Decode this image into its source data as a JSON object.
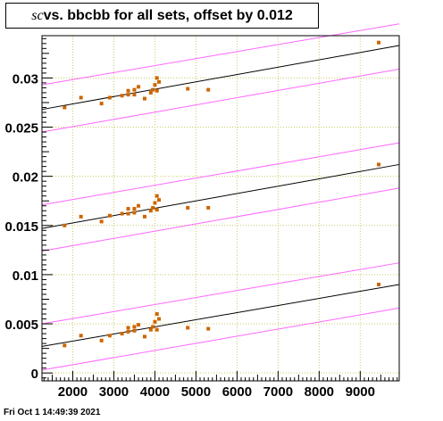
{
  "title": {
    "italic_var": "sc",
    "rest": " vs. bbcbb for all sets, offset by 0.012"
  },
  "footer": {
    "timestamp": "Fri Oct  1 14:49:39 2021"
  },
  "colors": {
    "points": "#cc6600",
    "fit": "#000000",
    "band": "#ff66ff",
    "grid": "#cccc66",
    "axis": "#000000"
  },
  "chart_data": {
    "type": "scatter",
    "title": "sc vs. bbcbb for all sets, offset by 0.012",
    "xlabel": "",
    "ylabel": "",
    "xlim": [
      1250,
      9950
    ],
    "ylim": [
      -0.0008,
      0.0343
    ],
    "x_ticks": [
      2000,
      3000,
      4000,
      5000,
      6000,
      7000,
      8000,
      9000
    ],
    "x_tick_labels": [
      "2000",
      "3000",
      "4000",
      "5000",
      "6000",
      "7000",
      "8000",
      "9000"
    ],
    "y_ticks": [
      0,
      0.005,
      0.01,
      0.015,
      0.02,
      0.025,
      0.03
    ],
    "y_tick_labels": [
      "0",
      "0.005",
      "0.01",
      "0.015",
      "0.02",
      "0.025",
      "0.03"
    ],
    "grid": true,
    "series": [
      {
        "points": [
          [
            1800,
            0.0028
          ],
          [
            2200,
            0.0038
          ],
          [
            2700,
            0.0033
          ],
          [
            2900,
            0.0038
          ],
          [
            3200,
            0.004
          ],
          [
            3350,
            0.0042
          ],
          [
            3350,
            0.0046
          ],
          [
            3500,
            0.0043
          ],
          [
            3500,
            0.0047
          ],
          [
            3600,
            0.0049
          ],
          [
            3750,
            0.0037
          ],
          [
            3900,
            0.0044
          ],
          [
            3950,
            0.0047
          ],
          [
            4000,
            0.0052
          ],
          [
            4050,
            0.006
          ],
          [
            4050,
            0.0044
          ],
          [
            4100,
            0.0055
          ],
          [
            4800,
            0.0046
          ],
          [
            5300,
            0.0045
          ],
          [
            9450,
            0.009
          ]
        ],
        "fit": [
          [
            1250,
            0.0027
          ],
          [
            9950,
            0.009
          ]
        ],
        "band_upper": [
          [
            1250,
            0.005
          ],
          [
            9950,
            0.0112
          ]
        ],
        "band_lower": [
          [
            1250,
            0.0003
          ],
          [
            9950,
            0.0066
          ]
        ]
      },
      {
        "points": [
          [
            1800,
            0.015
          ],
          [
            2200,
            0.0159
          ],
          [
            2700,
            0.0154
          ],
          [
            2900,
            0.016
          ],
          [
            3200,
            0.0162
          ],
          [
            3350,
            0.0162
          ],
          [
            3350,
            0.0167
          ],
          [
            3500,
            0.0163
          ],
          [
            3500,
            0.0167
          ],
          [
            3600,
            0.017
          ],
          [
            3750,
            0.0159
          ],
          [
            3900,
            0.0165
          ],
          [
            3950,
            0.0168
          ],
          [
            4000,
            0.0173
          ],
          [
            4050,
            0.018
          ],
          [
            4050,
            0.0166
          ],
          [
            4100,
            0.0176
          ],
          [
            4800,
            0.0168
          ],
          [
            5300,
            0.0168
          ],
          [
            9450,
            0.0212
          ]
        ],
        "fit": [
          [
            1250,
            0.0147
          ],
          [
            9950,
            0.0212
          ]
        ],
        "band_upper": [
          [
            1250,
            0.0171
          ],
          [
            9950,
            0.0234
          ]
        ],
        "band_lower": [
          [
            1250,
            0.0124
          ],
          [
            9950,
            0.0188
          ]
        ]
      },
      {
        "points": [
          [
            1800,
            0.027
          ],
          [
            2200,
            0.028
          ],
          [
            2700,
            0.0274
          ],
          [
            2900,
            0.028
          ],
          [
            3200,
            0.0282
          ],
          [
            3350,
            0.0283
          ],
          [
            3350,
            0.0287
          ],
          [
            3500,
            0.0283
          ],
          [
            3500,
            0.0288
          ],
          [
            3600,
            0.0291
          ],
          [
            3750,
            0.0279
          ],
          [
            3900,
            0.0285
          ],
          [
            3950,
            0.0288
          ],
          [
            4000,
            0.0293
          ],
          [
            4050,
            0.03
          ],
          [
            4050,
            0.0287
          ],
          [
            4100,
            0.0296
          ],
          [
            4800,
            0.0289
          ],
          [
            5300,
            0.0288
          ],
          [
            9450,
            0.0336
          ]
        ],
        "fit": [
          [
            1250,
            0.0268
          ],
          [
            9950,
            0.0333
          ]
        ],
        "band_upper": [
          [
            1250,
            0.0293
          ],
          [
            9950,
            0.0355
          ]
        ],
        "band_lower": [
          [
            1250,
            0.0245
          ],
          [
            9950,
            0.0309
          ]
        ]
      }
    ]
  }
}
